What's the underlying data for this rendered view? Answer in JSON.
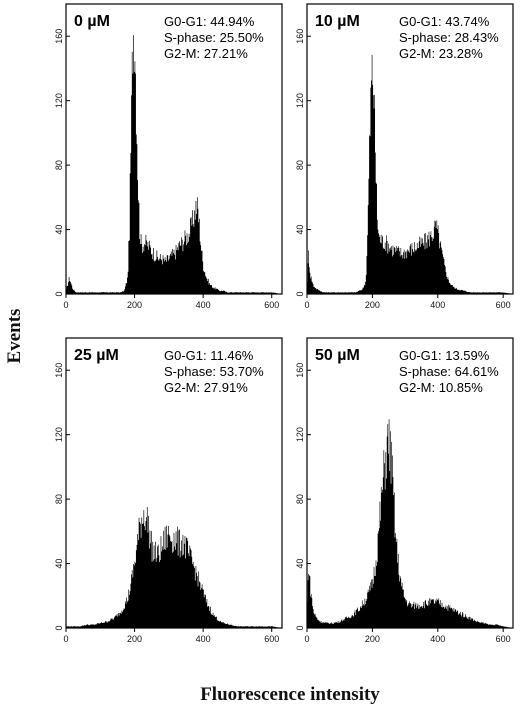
{
  "figure": {
    "ylabel": "Events",
    "xlabel": "Fluorescence intensity"
  },
  "chart_data": [
    {
      "type": "bar",
      "title": "0 µM",
      "stats": [
        "G0-G1: 44.94%",
        "S-phase: 25.50%",
        "G2-M: 27.21%"
      ],
      "xticks": [
        0,
        200,
        400,
        600
      ],
      "yticks": [
        0,
        40,
        80,
        120,
        160
      ],
      "xlim": [
        0,
        630
      ],
      "ylim": [
        0,
        180
      ],
      "x": [
        0,
        10,
        20,
        30,
        40,
        50,
        60,
        70,
        80,
        90,
        100,
        110,
        120,
        130,
        140,
        150,
        160,
        170,
        180,
        185,
        190,
        195,
        200,
        205,
        210,
        215,
        220,
        230,
        240,
        250,
        260,
        270,
        280,
        290,
        300,
        310,
        320,
        330,
        340,
        350,
        360,
        370,
        375,
        380,
        385,
        390,
        395,
        400,
        410,
        420,
        430,
        440,
        450,
        460,
        470,
        480,
        500,
        520,
        540,
        560,
        580,
        600,
        630
      ],
      "values": [
        2,
        10,
        3,
        1,
        1,
        1,
        1,
        1,
        1,
        1,
        1,
        1,
        1,
        1,
        1,
        1,
        1,
        2,
        10,
        40,
        100,
        160,
        170,
        120,
        70,
        40,
        30,
        32,
        30,
        27,
        24,
        22,
        22,
        20,
        22,
        24,
        26,
        30,
        32,
        35,
        38,
        45,
        50,
        55,
        52,
        40,
        28,
        18,
        10,
        6,
        4,
        3,
        2,
        2,
        1,
        1,
        1,
        1,
        1,
        1,
        1,
        1,
        0
      ]
    },
    {
      "type": "bar",
      "title": "10 µM",
      "stats": [
        "G0-G1: 43.74%",
        "S-phase: 28.43%",
        "G2-M: 23.28%"
      ],
      "xticks": [
        0,
        200,
        400,
        600
      ],
      "yticks": [
        0,
        40,
        80,
        120,
        160
      ],
      "xlim": [
        0,
        630
      ],
      "ylim": [
        0,
        180
      ],
      "x": [
        0,
        5,
        10,
        20,
        30,
        40,
        50,
        60,
        80,
        100,
        120,
        140,
        150,
        160,
        170,
        180,
        185,
        190,
        195,
        200,
        205,
        210,
        215,
        220,
        230,
        240,
        250,
        260,
        270,
        280,
        290,
        300,
        310,
        320,
        330,
        340,
        350,
        360,
        370,
        380,
        390,
        395,
        400,
        410,
        420,
        430,
        440,
        450,
        460,
        480,
        500,
        520,
        540,
        560,
        580,
        600,
        630
      ],
      "values": [
        5,
        25,
        12,
        5,
        3,
        2,
        1,
        1,
        1,
        1,
        1,
        1,
        1,
        2,
        3,
        8,
        35,
        80,
        120,
        140,
        125,
        80,
        48,
        35,
        33,
        32,
        30,
        28,
        27,
        26,
        25,
        26,
        27,
        28,
        29,
        30,
        31,
        32,
        34,
        36,
        40,
        42,
        38,
        28,
        18,
        10,
        6,
        4,
        3,
        2,
        1,
        1,
        1,
        1,
        1,
        1,
        0
      ]
    },
    {
      "type": "bar",
      "title": "25 µM",
      "stats": [
        "G0-G1: 11.46%",
        "S-phase: 53.70%",
        "G2-M: 27.91%"
      ],
      "xticks": [
        0,
        200,
        400,
        600
      ],
      "yticks": [
        0,
        40,
        80,
        120,
        160
      ],
      "xlim": [
        0,
        630
      ],
      "ylim": [
        0,
        180
      ],
      "x": [
        0,
        20,
        40,
        60,
        80,
        100,
        120,
        140,
        160,
        180,
        190,
        200,
        210,
        220,
        230,
        240,
        250,
        260,
        270,
        280,
        290,
        300,
        310,
        320,
        330,
        340,
        350,
        360,
        370,
        380,
        390,
        400,
        410,
        420,
        430,
        440,
        450,
        460,
        480,
        500,
        520,
        540,
        560,
        580,
        600,
        630
      ],
      "values": [
        1,
        1,
        1,
        2,
        2,
        3,
        4,
        6,
        10,
        18,
        28,
        40,
        55,
        68,
        72,
        64,
        50,
        46,
        45,
        50,
        55,
        58,
        56,
        55,
        52,
        54,
        50,
        44,
        40,
        34,
        28,
        22,
        16,
        12,
        8,
        6,
        4,
        3,
        2,
        1,
        1,
        1,
        1,
        1,
        1,
        0
      ]
    },
    {
      "type": "bar",
      "title": "50 µM",
      "stats": [
        "G0-G1: 13.59%",
        "S-phase: 64.61%",
        "G2-M: 10.85%"
      ],
      "xticks": [
        0,
        200,
        400,
        600
      ],
      "yticks": [
        0,
        40,
        80,
        120,
        160
      ],
      "xlim": [
        0,
        630
      ],
      "ylim": [
        0,
        180
      ],
      "x": [
        0,
        5,
        10,
        20,
        30,
        40,
        60,
        80,
        100,
        120,
        140,
        160,
        180,
        190,
        200,
        210,
        220,
        230,
        240,
        245,
        250,
        255,
        260,
        265,
        270,
        280,
        290,
        300,
        310,
        320,
        340,
        360,
        380,
        400,
        420,
        440,
        460,
        480,
        500,
        520,
        540,
        560,
        580,
        600,
        630
      ],
      "values": [
        10,
        40,
        25,
        10,
        6,
        4,
        3,
        3,
        4,
        6,
        8,
        12,
        18,
        22,
        28,
        40,
        60,
        85,
        105,
        112,
        115,
        110,
        98,
        80,
        60,
        38,
        25,
        18,
        15,
        14,
        14,
        15,
        16,
        16,
        14,
        12,
        10,
        8,
        6,
        4,
        3,
        2,
        2,
        1,
        0
      ]
    }
  ]
}
